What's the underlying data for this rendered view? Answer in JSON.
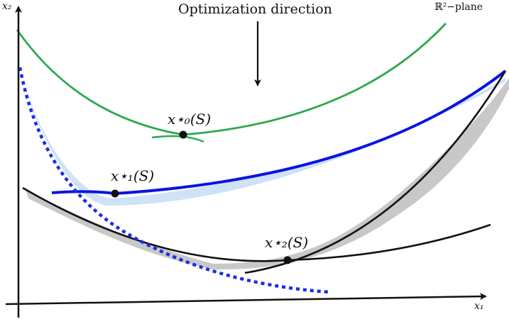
{
  "diagram": {
    "title": "Optimization direction",
    "plane_label": "ℝ²−plane",
    "axes": {
      "x_label": "x₁",
      "y_label": "x₂"
    },
    "points": [
      {
        "id": "x0",
        "label": "x⋆₀(S)"
      },
      {
        "id": "x1",
        "label": "x⋆₁(S)"
      },
      {
        "id": "x2",
        "label": "x⋆₂(S)"
      }
    ],
    "colors": {
      "green_curve": "#2ea84f",
      "blue_curve": "#0a14e0",
      "blue_shadow": "#cfe2f7",
      "black_curve": "#111111",
      "gray_shadow": "#c8c8c8",
      "dotted_curve": "#1a2ee6"
    }
  }
}
